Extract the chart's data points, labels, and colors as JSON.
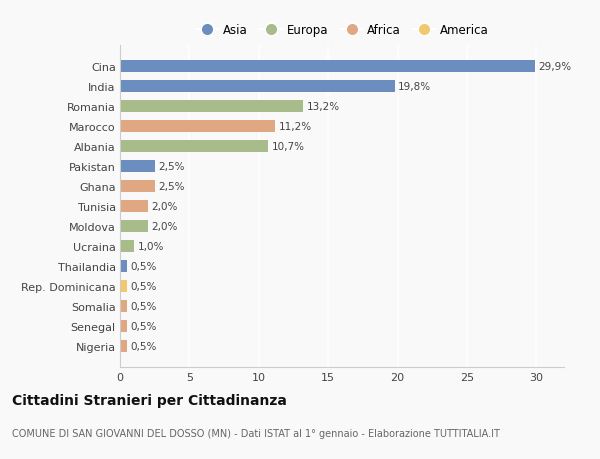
{
  "countries": [
    "Cina",
    "India",
    "Romania",
    "Marocco",
    "Albania",
    "Pakistan",
    "Ghana",
    "Tunisia",
    "Moldova",
    "Ucraina",
    "Thailandia",
    "Rep. Dominicana",
    "Somalia",
    "Senegal",
    "Nigeria"
  ],
  "values": [
    29.9,
    19.8,
    13.2,
    11.2,
    10.7,
    2.5,
    2.5,
    2.0,
    2.0,
    1.0,
    0.5,
    0.5,
    0.5,
    0.5,
    0.5
  ],
  "labels": [
    "29,9%",
    "19,8%",
    "13,2%",
    "11,2%",
    "10,7%",
    "2,5%",
    "2,5%",
    "2,0%",
    "2,0%",
    "1,0%",
    "0,5%",
    "0,5%",
    "0,5%",
    "0,5%",
    "0,5%"
  ],
  "continents": [
    "Asia",
    "Asia",
    "Europa",
    "Africa",
    "Europa",
    "Asia",
    "Africa",
    "Africa",
    "Europa",
    "Europa",
    "Asia",
    "America",
    "Africa",
    "Africa",
    "Africa"
  ],
  "colors": {
    "Asia": "#6b8ebf",
    "Europa": "#a8bb8a",
    "Africa": "#e0a882",
    "America": "#f0c96e"
  },
  "legend_order": [
    "Asia",
    "Europa",
    "Africa",
    "America"
  ],
  "title": "Cittadini Stranieri per Cittadinanza",
  "subtitle": "COMUNE DI SAN GIOVANNI DEL DOSSO (MN) - Dati ISTAT al 1° gennaio - Elaborazione TUTTITALIA.IT",
  "xlim": [
    0,
    32
  ],
  "xticks": [
    0,
    5,
    10,
    15,
    20,
    25,
    30
  ],
  "background_color": "#f9f9f9",
  "grid_color": "#ffffff",
  "bar_height": 0.6
}
